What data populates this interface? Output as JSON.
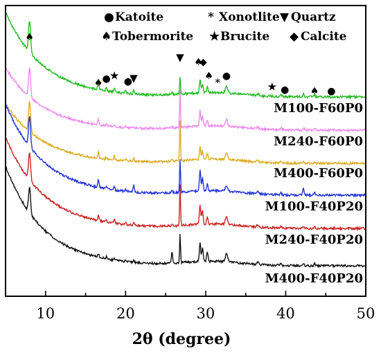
{
  "chart_data": {
    "type": "line",
    "xlabel": "2θ (degree)",
    "ylabel": "",
    "xlim": [
      5,
      50
    ],
    "xticks": [
      "10",
      "20",
      "30",
      "40",
      "50"
    ],
    "y_ticks_shown": false,
    "grid": false,
    "series": [
      {
        "name": "M100-F60P0",
        "color": "#22bb22",
        "start_level": 98,
        "end_level": 5
      },
      {
        "name": "M240-F60P0",
        "color": "#ee88ee",
        "start_level": 80,
        "end_level": 4
      },
      {
        "name": "M400-F60P0",
        "color": "#ddaa22",
        "start_level": 70,
        "end_level": 3
      },
      {
        "name": "M100-F40P20",
        "color": "#2233dd",
        "start_level": 62,
        "end_level": 2
      },
      {
        "name": "M240-F40P20",
        "color": "#cc2222",
        "start_level": 48,
        "end_level": 1
      },
      {
        "name": "M400-F40P20",
        "color": "#111111",
        "start_level": 40,
        "end_level": 0
      }
    ],
    "peaks_2theta": [
      8.0,
      16.6,
      17.6,
      18.6,
      20.0,
      21.0,
      25.8,
      26.8,
      29.3,
      29.6,
      30.2,
      32.6,
      36.5,
      39.4,
      42.2,
      43.6
    ],
    "phase_legend": [
      {
        "marker": "●",
        "label": "Katoite"
      },
      {
        "marker": "*",
        "label": "Xonotlite"
      },
      {
        "marker": "▼",
        "label": "Quartz"
      },
      {
        "marker": "♠",
        "label": "Tobermorite"
      },
      {
        "marker": "★",
        "label": "Brucite"
      },
      {
        "marker": "◆",
        "label": "Calcite"
      }
    ],
    "peak_markers": [
      {
        "marker": "♠",
        "x": 8.0
      },
      {
        "marker": "♠",
        "x": 16.6
      },
      {
        "marker": "●",
        "x": 17.6
      },
      {
        "marker": "★",
        "x": 18.6
      },
      {
        "marker": "●",
        "x": 20.3
      },
      {
        "marker": "▼",
        "x": 21.0
      },
      {
        "marker": "▼",
        "x": 26.8
      },
      {
        "marker": "♠",
        "x": 29.1
      },
      {
        "marker": "◆",
        "x": 29.7
      },
      {
        "marker": "♠",
        "x": 30.4
      },
      {
        "marker": "*",
        "x": 31.5
      },
      {
        "marker": "●",
        "x": 32.6
      },
      {
        "marker": "★",
        "x": 38.3
      },
      {
        "marker": "●",
        "x": 39.9
      },
      {
        "marker": "♠",
        "x": 43.6
      },
      {
        "marker": "●",
        "x": 45.7
      }
    ]
  }
}
